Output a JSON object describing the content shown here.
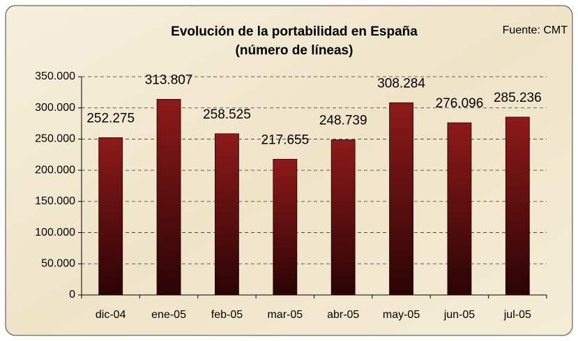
{
  "chart_data": {
    "type": "bar",
    "title": "Evolución de la portabilidad en España",
    "subtitle": "(número de líneas)",
    "annotation": "Fuente: CMT",
    "categories": [
      "dic-04",
      "ene-05",
      "feb-05",
      "mar-05",
      "abr-05",
      "may-05",
      "jun-05",
      "jul-05"
    ],
    "values": [
      252275,
      313807,
      258525,
      217655,
      248739,
      308284,
      276096,
      285236
    ],
    "value_labels": [
      "252.275",
      "313.807",
      "258.525",
      "217.655",
      "248.739",
      "308.284",
      "276.096",
      "285.236"
    ],
    "color": "#7a1414",
    "ylim": [
      0,
      350000
    ],
    "yticks": [
      0,
      {
        "value": 50000,
        "label": "50.000"
      },
      {
        "value": 100000,
        "label": "100.000"
      },
      {
        "value": 150000,
        "label": "150.000"
      },
      {
        "value": 200000,
        "label": "200.000"
      },
      {
        "value": 250000,
        "label": "250.000"
      },
      {
        "value": 300000,
        "label": "300.000"
      },
      {
        "value": 350000,
        "label": "350.000"
      }
    ],
    "grid": true
  }
}
